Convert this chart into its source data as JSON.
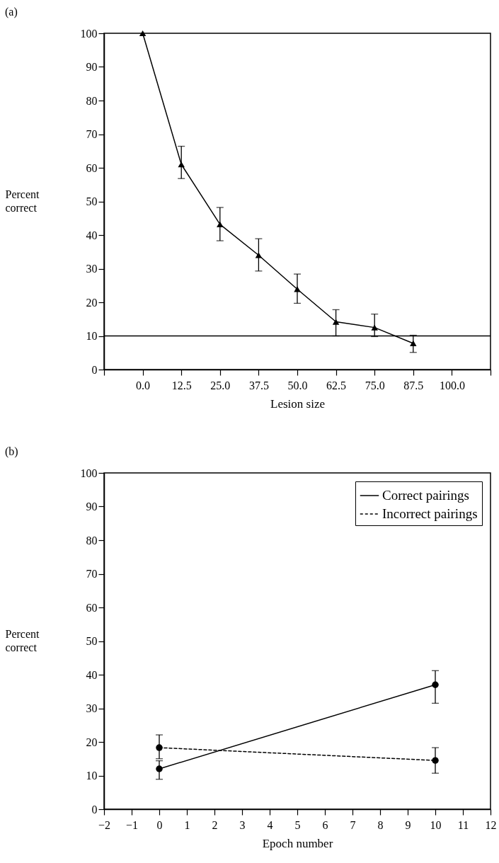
{
  "chart_data": [
    {
      "type": "line",
      "title": "(a)",
      "xlabel": "Lesion size",
      "ylabel": "Percent correct",
      "x": [
        0,
        12.5,
        25,
        37.5,
        50,
        62.5,
        75,
        87.5
      ],
      "series": [
        {
          "color": "#000000",
          "marker": "triangle",
          "line_style": "solid",
          "values": [
            100,
            61,
            43.2,
            34,
            23.9,
            14.2,
            12.5,
            7.8
          ],
          "errors": [
            null,
            [
              56.8,
              66.4
            ],
            [
              38.3,
              48.2
            ],
            [
              29.3,
              38.9
            ],
            [
              19.7,
              28.4
            ],
            [
              10,
              17.8
            ],
            [
              9.8,
              16.5
            ],
            [
              5.1,
              10.2
            ]
          ]
        }
      ],
      "xlim": [
        -12.5,
        112.5
      ],
      "xticks": [
        {
          "value": -12.5,
          "label": null
        },
        {
          "value": 0,
          "label": "0.0"
        },
        {
          "value": 12.5,
          "label": "12.5"
        },
        {
          "value": 25,
          "label": "25.0"
        },
        {
          "value": 37.5,
          "label": "37.5"
        },
        {
          "value": 50,
          "label": "50.0"
        },
        {
          "value": 62.5,
          "label": "62.5"
        },
        {
          "value": 75,
          "label": "75.0"
        },
        {
          "value": 87.5,
          "label": "87.5"
        },
        {
          "value": 100,
          "label": "100.0"
        },
        {
          "value": 112.5,
          "label": null
        }
      ],
      "ylim": [
        0,
        100
      ],
      "yticks": [
        0,
        10,
        20,
        30,
        40,
        50,
        60,
        70,
        80,
        90,
        100
      ],
      "ref_lines": [
        {
          "axis": "y",
          "value": 10,
          "label": null
        }
      ],
      "grid": false
    },
    {
      "type": "line",
      "title": "(b)",
      "xlabel": "Epoch number",
      "ylabel": "Percent correct",
      "x": [
        0,
        10
      ],
      "series": [
        {
          "name": "Correct pairings",
          "color": "#000000",
          "marker": "circle",
          "line_style": "solid",
          "values": [
            12,
            37
          ],
          "errors": [
            [
              8.9,
              14.4
            ],
            [
              31.5,
              41.2
            ]
          ]
        },
        {
          "name": "Incorrect pairings",
          "color": "#000000",
          "marker": "circle",
          "line_style": "dashed",
          "values": [
            18.3,
            14.5
          ],
          "errors": [
            [
              15,
              22.1
            ],
            [
              10.7,
              18.3
            ]
          ]
        }
      ],
      "xlim": [
        -2,
        12
      ],
      "xticks": [
        {
          "value": -2,
          "label": "−2"
        },
        {
          "value": -1,
          "label": "−1"
        },
        0,
        1,
        2,
        3,
        4,
        5,
        6,
        7,
        8,
        9,
        10,
        11,
        12
      ],
      "ylim": [
        0,
        100
      ],
      "yticks": [
        0,
        10,
        20,
        30,
        40,
        50,
        60,
        70,
        80,
        90,
        100
      ],
      "grid": false,
      "legend": "top right"
    }
  ]
}
